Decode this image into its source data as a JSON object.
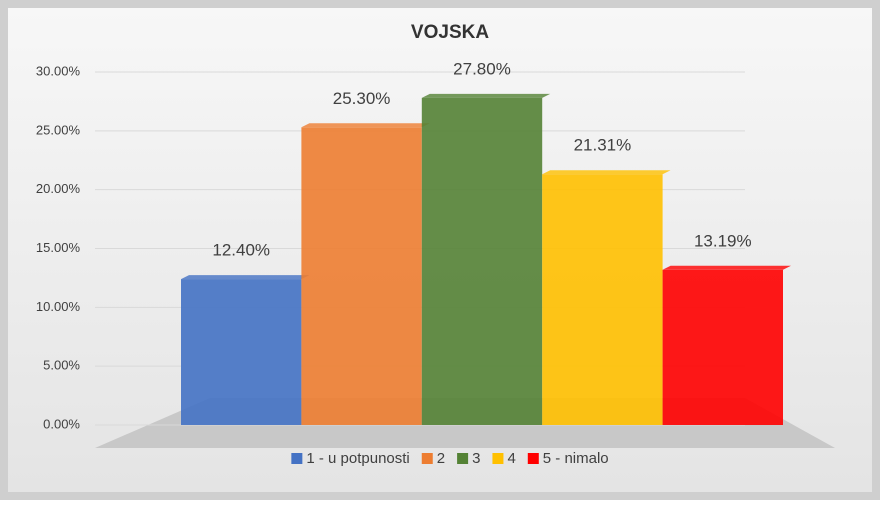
{
  "chart_data": {
    "type": "bar",
    "title": "VOJSKA",
    "categories": [
      "1 - u potpunosti",
      "2",
      "3",
      "4",
      "5 - nimalo"
    ],
    "values": [
      12.4,
      25.3,
      27.8,
      21.31,
      13.19
    ],
    "value_labels": [
      "12.40%",
      "25.30%",
      "27.80%",
      "21.31%",
      "13.19%"
    ],
    "colors": [
      "#4472c4",
      "#ed7d31",
      "#548235",
      "#ffc000",
      "#ff0000"
    ],
    "ylim": [
      0,
      30
    ],
    "yticks": [
      {
        "value": 0,
        "label": "0.00%"
      },
      {
        "value": 5,
        "label": "5.00%"
      },
      {
        "value": 10,
        "label": "10.00%"
      },
      {
        "value": 15,
        "label": "15.00%"
      },
      {
        "value": 20,
        "label": "20.00%"
      },
      {
        "value": 25,
        "label": "25.00%"
      },
      {
        "value": 30,
        "label": "30.00%"
      }
    ],
    "grid": true,
    "legend": "bottom"
  }
}
